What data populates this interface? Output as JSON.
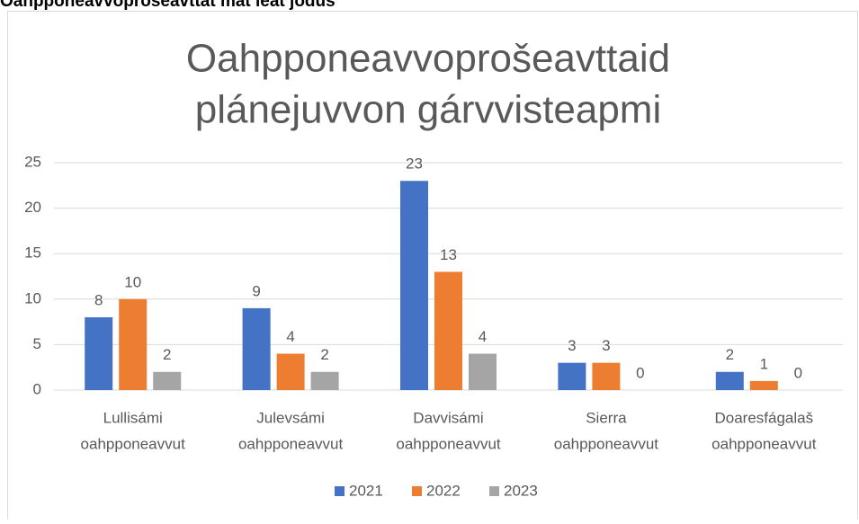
{
  "heading": "Oahpponeavvoprošeavttat mat leat jođus",
  "chart_data": {
    "type": "bar",
    "title": [
      "Oahpponeavvoprošeavttaid",
      "plánejuvvon gárvvisteapmi"
    ],
    "categories": [
      [
        "Lullisámi",
        "oahpponeavvut"
      ],
      [
        "Julevsámi",
        "oahpponeavvut"
      ],
      [
        "Davvisámi",
        "oahpponeavvut"
      ],
      [
        "Sierra",
        "oahpponeavvut"
      ],
      [
        "Doaresfágalaš",
        "oahpponeavvut"
      ]
    ],
    "series": [
      {
        "name": "2021",
        "color": "#4472c4",
        "values": [
          8,
          9,
          23,
          3,
          2
        ]
      },
      {
        "name": "2022",
        "color": "#ed7d31",
        "values": [
          10,
          4,
          13,
          3,
          1
        ]
      },
      {
        "name": "2023",
        "color": "#a5a5a5",
        "values": [
          2,
          2,
          4,
          0,
          0
        ]
      }
    ],
    "ylim": [
      0,
      25
    ],
    "yticks": [
      0,
      5,
      10,
      15,
      20,
      25
    ],
    "grid": true,
    "legend": "bottom"
  }
}
